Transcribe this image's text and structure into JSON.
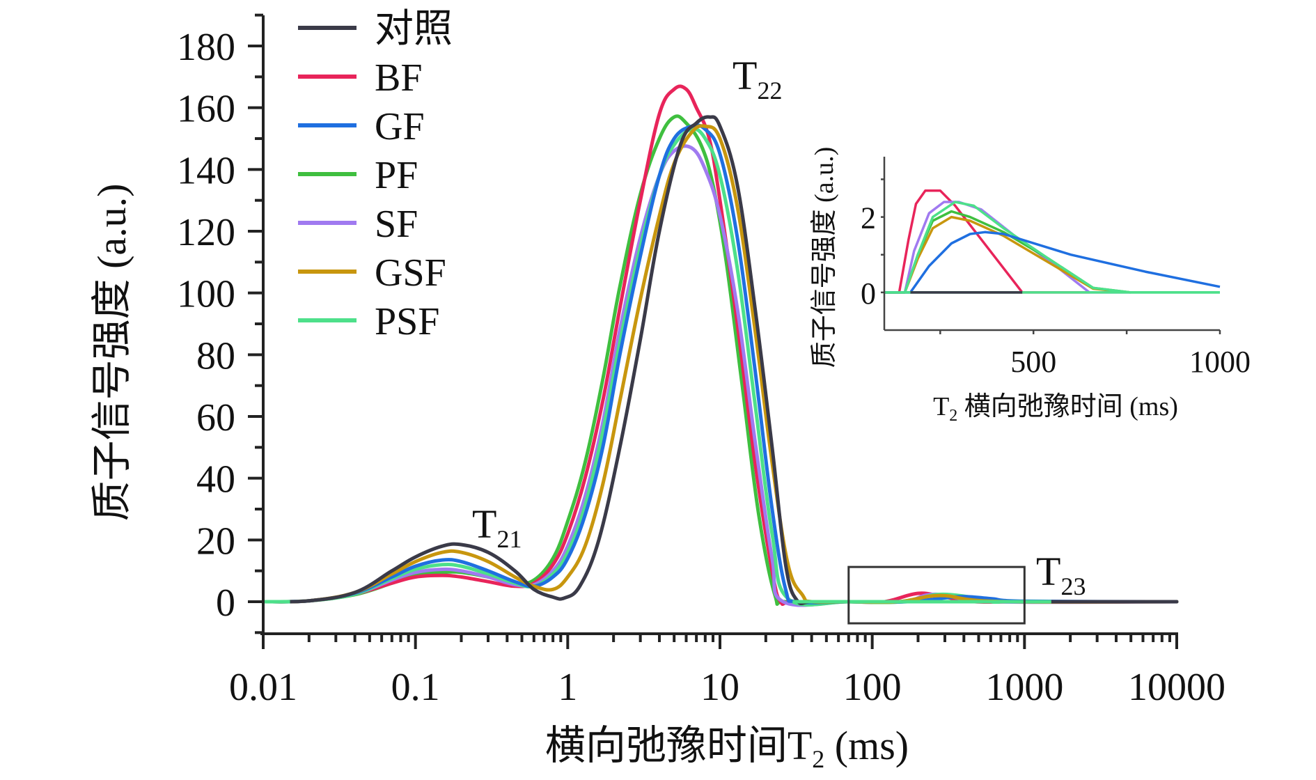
{
  "chart_data": [
    {
      "id": "main",
      "type": "line",
      "title": "",
      "xlabel": "横向弛豫时间T₂ (ms)",
      "xlabel_parts": {
        "main": "横向弛豫时间T",
        "sub": "2",
        "unit": " (ms)"
      },
      "ylabel": "质子信号强度 (a.u.)",
      "xscale": "log",
      "xlim": [
        0.01,
        10000
      ],
      "ylim": [
        -10,
        190
      ],
      "x_ticks": [
        0.01,
        0.1,
        1,
        10,
        100,
        1000,
        10000
      ],
      "x_tick_labels": [
        "0.01",
        "0.1",
        "1",
        "10",
        "100",
        "1000",
        "10000"
      ],
      "y_ticks": [
        0,
        20,
        40,
        60,
        80,
        100,
        120,
        140,
        160,
        180
      ],
      "y_tick_labels": [
        "0",
        "20",
        "40",
        "60",
        "80",
        "100",
        "120",
        "140",
        "160",
        "180"
      ],
      "grid": false,
      "legend": {
        "position": "top-left"
      },
      "annotations": [
        {
          "text": "T",
          "sub": "21",
          "near_x": 0.2,
          "near_y": 20
        },
        {
          "text": "T",
          "sub": "22",
          "near_x": 11,
          "near_y": 168
        },
        {
          "text": "T",
          "sub": "23",
          "near_x": 1100,
          "near_y": 6
        }
      ],
      "highlight_box": {
        "x": [
          70,
          1000
        ],
        "y": [
          -7,
          9
        ]
      },
      "series": [
        {
          "name": "对照",
          "color": "#3a3a48",
          "x": [
            0.01,
            0.02,
            0.04,
            0.07,
            0.1,
            0.15,
            0.2,
            0.3,
            0.45,
            0.6,
            0.8,
            0.95,
            1.2,
            1.6,
            2.2,
            3,
            4,
            5.5,
            7,
            8.5,
            10,
            13,
            17,
            22,
            27,
            32,
            40,
            70,
            100,
            200,
            300,
            500,
            1000,
            2000,
            10000
          ],
          "y": [
            0,
            0.3,
            3,
            10,
            14.5,
            18,
            18.5,
            16,
            10,
            4,
            1.5,
            1.2,
            5,
            20,
            50,
            85,
            120,
            148,
            155,
            157,
            154,
            135,
            95,
            50,
            12,
            0.5,
            0,
            0,
            0,
            0,
            0,
            0,
            0,
            0,
            0
          ]
        },
        {
          "name": "BF",
          "color": "#e8245a",
          "x": [
            0.01,
            0.02,
            0.04,
            0.07,
            0.1,
            0.15,
            0.2,
            0.3,
            0.45,
            0.6,
            0.8,
            1,
            1.3,
            1.7,
            2.2,
            3,
            4,
            5,
            6,
            7,
            8.5,
            10,
            13,
            17,
            22,
            25,
            30,
            70,
            120,
            200,
            300,
            470,
            1000,
            10000
          ],
          "y": [
            0,
            0.3,
            2.5,
            6,
            8,
            8.5,
            8,
            6.5,
            5,
            6,
            12,
            22,
            40,
            65,
            95,
            130,
            158,
            166,
            166,
            160,
            150,
            130,
            90,
            45,
            10,
            0,
            0,
            0,
            0,
            2.7,
            1.5,
            0,
            0,
            0
          ]
        },
        {
          "name": "GF",
          "color": "#1f6fe0",
          "x": [
            0.01,
            0.02,
            0.04,
            0.07,
            0.1,
            0.15,
            0.2,
            0.3,
            0.45,
            0.6,
            0.8,
            1,
            1.3,
            1.7,
            2.2,
            3,
            4,
            5,
            6.5,
            8,
            10,
            13,
            17,
            22,
            27,
            32,
            70,
            170,
            370,
            600,
            1000,
            10000
          ],
          "y": [
            0,
            0.3,
            2.8,
            8,
            11.5,
            13.5,
            13,
            10,
            6.5,
            5,
            8,
            14,
            28,
            50,
            80,
            112,
            138,
            150,
            154,
            153,
            145,
            118,
            75,
            30,
            4,
            0,
            0,
            0,
            1.6,
            1,
            0.15,
            0
          ]
        },
        {
          "name": "PF",
          "color": "#3fbf3f",
          "x": [
            0.01,
            0.02,
            0.04,
            0.07,
            0.1,
            0.15,
            0.2,
            0.3,
            0.45,
            0.6,
            0.8,
            1,
            1.3,
            1.7,
            2.2,
            3,
            4,
            5,
            6,
            7.5,
            9,
            11,
            14,
            18,
            23,
            27,
            70,
            150,
            280,
            660,
            760,
            10000
          ],
          "y": [
            0,
            0.3,
            2.3,
            6,
            8.5,
            9.5,
            9.5,
            8,
            6,
            7,
            14,
            26,
            45,
            72,
            102,
            132,
            150,
            157,
            155,
            148,
            135,
            110,
            70,
            28,
            2,
            0,
            0,
            0,
            2.1,
            0.1,
            0,
            0
          ]
        },
        {
          "name": "SF",
          "color": "#a07af0",
          "x": [
            0.01,
            0.02,
            0.04,
            0.07,
            0.1,
            0.15,
            0.2,
            0.3,
            0.45,
            0.6,
            0.8,
            1,
            1.3,
            1.7,
            2.2,
            3,
            4,
            5,
            6.5,
            8,
            10,
            13,
            17,
            22,
            26,
            70,
            160,
            260,
            650,
            10000
          ],
          "y": [
            0,
            0.3,
            2.5,
            7,
            9.5,
            10.5,
            10,
            8,
            5.5,
            5.5,
            10,
            18,
            34,
            58,
            88,
            118,
            138,
            146,
            147,
            140,
            125,
            95,
            52,
            14,
            0,
            0,
            0,
            2.4,
            0,
            0
          ]
        },
        {
          "name": "GSF",
          "color": "#c8960e",
          "x": [
            0.01,
            0.02,
            0.04,
            0.07,
            0.1,
            0.15,
            0.2,
            0.3,
            0.45,
            0.6,
            0.8,
            1,
            1.3,
            1.7,
            2.2,
            3,
            4,
            5,
            6.5,
            8,
            10,
            13,
            17,
            22,
            28,
            35,
            40,
            70,
            150,
            280,
            660,
            10000
          ],
          "y": [
            0,
            0.3,
            3,
            9,
            13,
            16,
            16,
            13,
            8,
            5,
            4,
            8,
            18,
            38,
            65,
            98,
            125,
            142,
            152,
            154,
            150,
            128,
            88,
            45,
            12,
            2,
            0,
            0,
            0,
            2.0,
            0.1,
            0
          ]
        },
        {
          "name": "PSF",
          "color": "#4de08a",
          "x": [
            0.01,
            0.02,
            0.04,
            0.07,
            0.1,
            0.15,
            0.2,
            0.3,
            0.45,
            0.6,
            0.8,
            1,
            1.3,
            1.7,
            2.2,
            3,
            4,
            5,
            6.5,
            8,
            10,
            13,
            17,
            22,
            28,
            70,
            160,
            290,
            660,
            760,
            10000
          ],
          "y": [
            0,
            0.3,
            2.5,
            7.5,
            10.5,
            12,
            11.5,
            9,
            6,
            5,
            9,
            16,
            31,
            55,
            84,
            115,
            138,
            148,
            153,
            150,
            138,
            108,
            64,
            22,
            1,
            0,
            0,
            2.4,
            0.1,
            0,
            0
          ]
        }
      ]
    },
    {
      "id": "inset",
      "type": "line",
      "title": "",
      "xlabel": "T₂ 横向弛豫时间 (ms)",
      "xlabel_parts": {
        "main": "T",
        "sub": "2",
        "unit": " 横向弛豫时间 (ms)"
      },
      "ylabel": "质子信号强度 (a.u.)",
      "xscale": "linear",
      "xlim": [
        100,
        1000
      ],
      "ylim": [
        -1,
        3.6
      ],
      "x_ticks": [
        250,
        500,
        750,
        1000
      ],
      "x_tick_labels": [
        "",
        "500",
        "",
        "1000"
      ],
      "y_ticks": [
        0,
        1,
        2,
        3
      ],
      "y_tick_labels": [
        "0",
        "",
        "2",
        ""
      ],
      "grid": false,
      "series": [
        {
          "name": "对照",
          "color": "#3a3a48",
          "x": [
            100,
            470
          ],
          "y": [
            0,
            0
          ]
        },
        {
          "name": "BF",
          "color": "#e8245a",
          "x": [
            100,
            140,
            165,
            185,
            210,
            250,
            290,
            470,
            650
          ],
          "y": [
            0,
            0,
            1.4,
            2.35,
            2.7,
            2.7,
            2.3,
            0,
            0
          ]
        },
        {
          "name": "SF",
          "color": "#a07af0",
          "x": [
            100,
            155,
            180,
            220,
            260,
            300,
            360,
            450,
            560,
            650,
            760
          ],
          "y": [
            0,
            0,
            1.1,
            2.1,
            2.4,
            2.4,
            2.2,
            1.5,
            0.7,
            0,
            0
          ]
        },
        {
          "name": "GSF",
          "color": "#c8960e",
          "x": [
            100,
            155,
            190,
            230,
            280,
            330,
            420,
            540,
            660,
            760
          ],
          "y": [
            0,
            0,
            0.9,
            1.7,
            2.0,
            1.9,
            1.5,
            0.8,
            0.1,
            0
          ]
        },
        {
          "name": "PF",
          "color": "#3fbf3f",
          "x": [
            100,
            155,
            190,
            230,
            280,
            330,
            420,
            540,
            660,
            760
          ],
          "y": [
            0,
            0,
            1.0,
            1.9,
            2.15,
            2.0,
            1.6,
            0.9,
            0.12,
            0
          ]
        },
        {
          "name": "PSF",
          "color": "#4de08a",
          "x": [
            100,
            155,
            190,
            230,
            290,
            340,
            420,
            540,
            660,
            760,
            1000
          ],
          "y": [
            0,
            0,
            1.0,
            2.0,
            2.4,
            2.3,
            1.7,
            0.9,
            0.12,
            0,
            0
          ]
        },
        {
          "name": "GF",
          "color": "#1f6fe0",
          "x": [
            100,
            170,
            220,
            280,
            330,
            370,
            420,
            600,
            800,
            1000
          ],
          "y": [
            0,
            0,
            0.7,
            1.3,
            1.55,
            1.6,
            1.55,
            1.0,
            0.55,
            0.15
          ]
        }
      ]
    }
  ]
}
